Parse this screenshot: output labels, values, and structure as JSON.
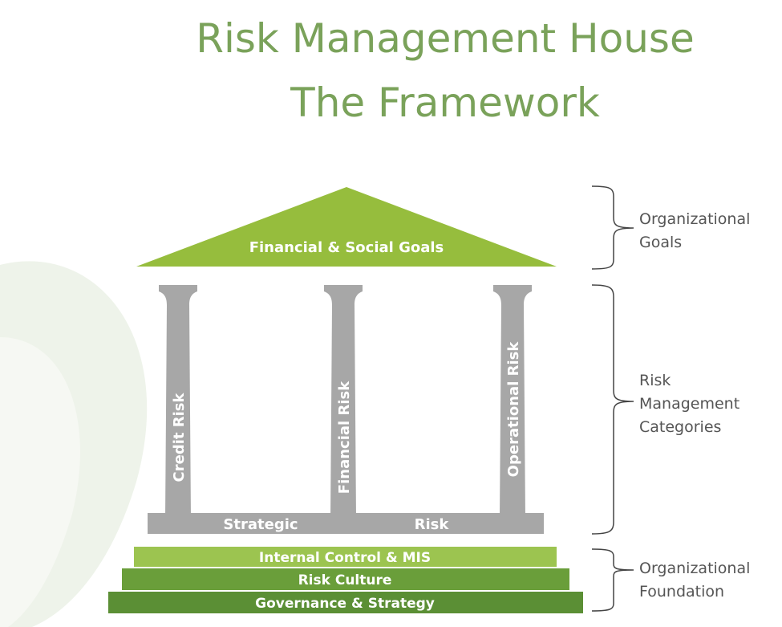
{
  "title": {
    "line1": "Risk Management House",
    "line2": "The Framework"
  },
  "roof": {
    "label": "Financial & Social Goals"
  },
  "pillars": [
    {
      "label": "Credit Risk"
    },
    {
      "label": "Financial Risk"
    },
    {
      "label": "Operational Risk"
    }
  ],
  "beam": {
    "left": "Strategic",
    "right": "Risk"
  },
  "steps": [
    {
      "label": "Internal Control & MIS"
    },
    {
      "label": "Risk Culture"
    },
    {
      "label": "Governance & Strategy"
    }
  ],
  "brackets": [
    {
      "label": "Organizational\nGoals"
    },
    {
      "label": "Risk\nManagement\nCategories"
    },
    {
      "label": "Organizational\nFoundation"
    }
  ],
  "colors": {
    "title": "#7aa25a",
    "roof": "#96bd3d",
    "pillar": "#a7a7a7",
    "step_light": "#9cc450",
    "step_mid": "#6a9e3a",
    "step_dark": "#5b8f35"
  }
}
